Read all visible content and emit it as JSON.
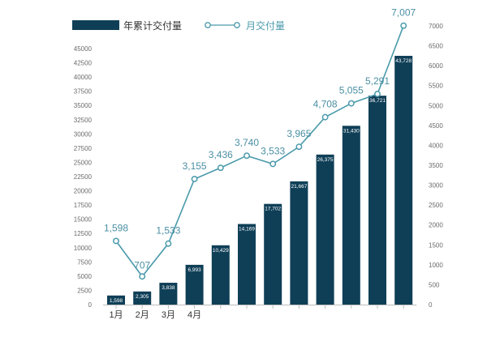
{
  "chart_data": {
    "type": "bar",
    "categories": [
      "1月",
      "2月",
      "3月",
      "4月",
      "",
      "",
      "",
      "",
      "",
      "",
      "",
      ""
    ],
    "series": [
      {
        "name": "年累计交付量",
        "type": "bar",
        "axis": "left",
        "color": "#0f3f57",
        "values": [
          1598,
          2305,
          3838,
          6993,
          10429,
          14169,
          17702,
          21667,
          26375,
          31430,
          36721,
          43728
        ],
        "labels": [
          "1,598",
          "2,305",
          "3,838",
          "6,993",
          "10,429",
          "14,169",
          "17,702",
          "21,667",
          "26,375",
          "31,430",
          "36,721",
          "43,728"
        ]
      },
      {
        "name": "月交付量",
        "type": "line",
        "axis": "right",
        "color": "#4a9aab",
        "values": [
          1598,
          707,
          1533,
          3155,
          3436,
          3740,
          3533,
          3965,
          4708,
          5055,
          5291,
          7007
        ],
        "labels": [
          "1,598",
          "707",
          "1,533",
          "3,155",
          "3,436",
          "3,740",
          "3,533",
          "3,965",
          "4,708",
          "5,055",
          "5,291",
          "7,007"
        ]
      }
    ],
    "y_left": {
      "min": 0,
      "max": 45000,
      "ticks": [
        0,
        2500,
        5000,
        7500,
        10000,
        12500,
        15000,
        17500,
        20000,
        22500,
        25000,
        27500,
        30000,
        32500,
        35000,
        37500,
        40000,
        42500,
        45000
      ]
    },
    "y_right": {
      "min": 0,
      "max": 7000,
      "ticks": [
        0,
        500,
        1000,
        1500,
        2000,
        2500,
        3000,
        3500,
        4000,
        4500,
        5000,
        5500,
        6000,
        6500,
        7000
      ]
    },
    "legend_position": "top-left",
    "grid": false
  }
}
